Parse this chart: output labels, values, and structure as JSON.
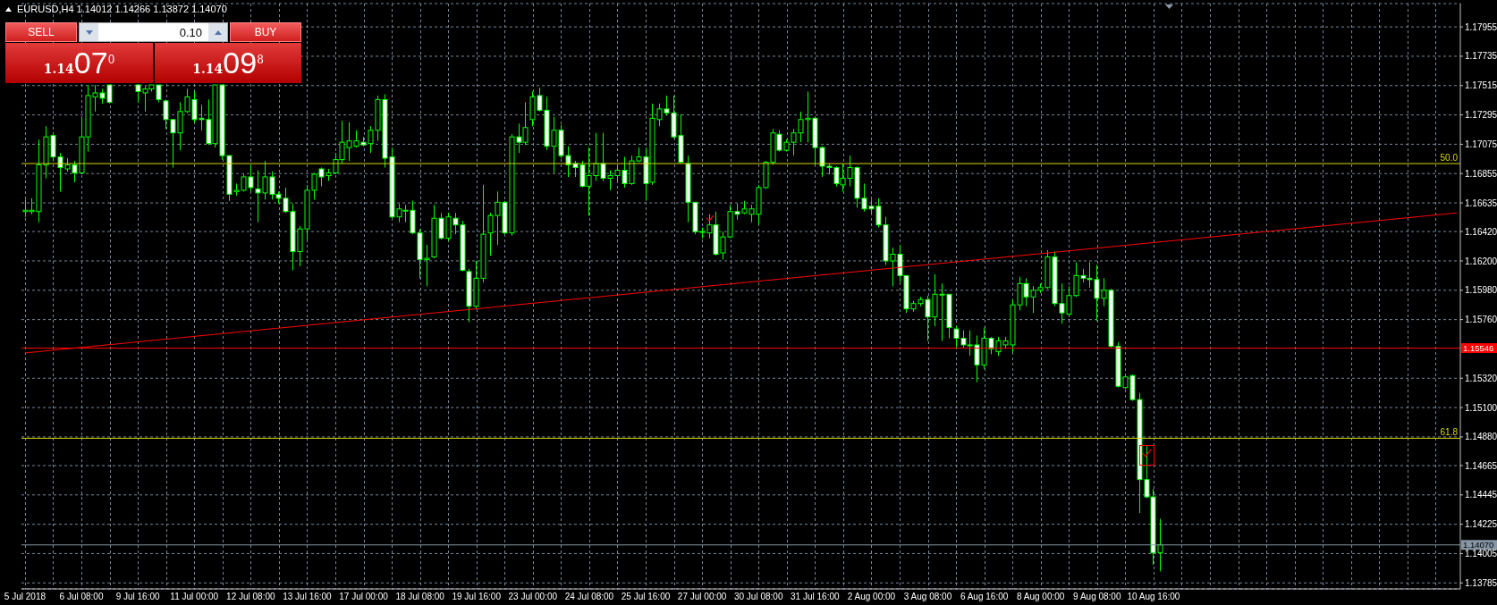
{
  "chart_data": {
    "type": "candlestick",
    "title": "EURUSD,H4 1.14012 1.14266 1.13872 1.14070",
    "annotations": [
      "SELL",
      "0.10",
      "BUY",
      "1.14",
      "07",
      "0",
      "1.14",
      "09",
      "8",
      {
        "text": "50.0",
        "y": 1.1693
      },
      {
        "text": "61.8",
        "y": 1.1487
      }
    ],
    "categories": [
      "5 Jul 2018",
      null,
      null,
      null,
      null,
      null,
      null,
      null,
      "6 Jul 08:00",
      null,
      null,
      null,
      null,
      null,
      null,
      null,
      "9 Jul 16:00",
      null,
      null,
      null,
      null,
      null,
      null,
      null,
      "11 Jul 00:00",
      null,
      null,
      null,
      null,
      null,
      null,
      null,
      "12 Jul 08:00",
      null,
      null,
      null,
      null,
      null,
      null,
      null,
      "13 Jul 16:00",
      null,
      null,
      null,
      null,
      null,
      null,
      null,
      "17 Jul 00:00",
      null,
      null,
      null,
      null,
      null,
      null,
      null,
      "18 Jul 08:00",
      null,
      null,
      null,
      null,
      null,
      null,
      null,
      "19 Jul 16:00",
      null,
      null,
      null,
      null,
      null,
      null,
      null,
      "23 Jul 00:00",
      null,
      null,
      null,
      null,
      null,
      null,
      null,
      "24 Jul 08:00",
      null,
      null,
      null,
      null,
      null,
      null,
      null,
      "25 Jul 16:00",
      null,
      null,
      null,
      null,
      null,
      null,
      null,
      "27 Jul 00:00",
      null,
      null,
      null,
      null,
      null,
      null,
      null,
      "30 Jul 08:00",
      null,
      null,
      null,
      null,
      null,
      null,
      null,
      "31 Jul 16:00",
      null,
      null,
      null,
      null,
      null,
      null,
      null,
      "2 Aug 00:00",
      null,
      null,
      null,
      null,
      null,
      null,
      null,
      "3 Aug 08:00",
      null,
      null,
      null,
      null,
      null,
      null,
      null,
      "6 Aug 16:00",
      null,
      null,
      null,
      null,
      null,
      null,
      null,
      "8 Aug 00:00",
      null,
      null,
      null,
      null,
      null,
      null,
      null,
      "9 Aug 08:00",
      null,
      null,
      null,
      null,
      null,
      null,
      null,
      "10 Aug 16:00",
      null,
      null,
      null,
      null,
      null,
      null,
      null,
      null,
      null,
      null,
      null,
      null,
      null,
      null,
      null,
      null,
      null,
      null,
      null,
      null,
      null,
      null,
      null,
      null,
      null,
      null,
      null,
      null,
      null,
      null,
      null,
      null,
      null,
      null,
      null,
      null,
      null,
      null,
      null,
      null,
      null,
      null,
      null
    ],
    "color": "#00ff00",
    "ohlc": [
      [
        1.1657,
        1.1666,
        1.1653,
        1.1658
      ],
      [
        1.1657,
        1.1667,
        1.1655,
        1.1658
      ],
      [
        1.1657,
        1.1711,
        1.1649,
        1.1692
      ],
      [
        1.1692,
        1.1721,
        1.1682,
        1.1713
      ],
      [
        1.1714,
        1.1716,
        1.1695,
        1.1698
      ],
      [
        1.1698,
        1.1701,
        1.1672,
        1.169
      ],
      [
        1.1689,
        1.1697,
        1.1687,
        1.1692
      ],
      [
        1.1692,
        1.1695,
        1.1679,
        1.1686
      ],
      [
        1.1686,
        1.1727,
        1.1685,
        1.1713
      ],
      [
        1.1713,
        1.1752,
        1.1702,
        1.1744
      ],
      [
        1.1743,
        1.1752,
        1.1732,
        1.1746
      ],
      [
        1.1746,
        1.1749,
        1.1738,
        1.1742
      ],
      [
        1.1752,
        1.1752,
        1.1738,
        1.1739
      ],
      null,
      null,
      null,
      [
        1.1752,
        1.1752,
        1.1739,
        1.1747
      ],
      [
        1.1746,
        1.1751,
        1.1732,
        1.1749
      ],
      [
        1.1749,
        1.1752,
        1.1747,
        1.1752
      ],
      [
        1.1752,
        1.1752,
        1.1739,
        1.1741
      ],
      [
        1.174,
        1.1741,
        1.1719,
        1.1726
      ],
      [
        1.1726,
        1.1726,
        1.169,
        1.1716
      ],
      [
        1.1716,
        1.1739,
        1.1703,
        1.1732
      ],
      [
        1.1732,
        1.1749,
        1.1731,
        1.1743
      ],
      [
        1.1741,
        1.1747,
        1.1724,
        1.1726
      ],
      [
        1.1727,
        1.1737,
        1.1718,
        1.1726
      ],
      [
        1.1726,
        1.1741,
        1.1707,
        1.1708
      ],
      [
        1.1708,
        1.1752,
        1.1705,
        1.1752
      ],
      [
        1.1752,
        1.1752,
        1.1696,
        1.1699
      ],
      [
        1.1699,
        1.1699,
        1.1665,
        1.167
      ],
      [
        1.1672,
        1.1678,
        1.1669,
        1.1673
      ],
      [
        1.1673,
        1.1685,
        1.1672,
        1.1683
      ],
      [
        1.1683,
        1.1692,
        1.1672,
        1.1675
      ],
      [
        1.1674,
        1.1688,
        1.1649,
        1.1671
      ],
      [
        1.1671,
        1.1695,
        1.1666,
        1.1683
      ],
      [
        1.1683,
        1.1687,
        1.1666,
        1.167
      ],
      [
        1.167,
        1.1672,
        1.1663,
        1.1667
      ],
      [
        1.1667,
        1.1675,
        1.1656,
        1.1657
      ],
      [
        1.1657,
        1.1663,
        1.1613,
        1.1627
      ],
      [
        1.1627,
        1.1646,
        1.1616,
        1.1644
      ],
      [
        1.1644,
        1.1677,
        1.1636,
        1.1673
      ],
      [
        1.1673,
        1.1686,
        1.1666,
        1.1685
      ],
      [
        1.1689,
        1.169,
        1.1676,
        1.1683
      ],
      [
        1.1684,
        1.1689,
        1.168,
        1.1686
      ],
      [
        1.1686,
        1.1701,
        1.1685,
        1.1696
      ],
      [
        1.1696,
        1.1725,
        1.1693,
        1.1709
      ],
      [
        1.1705,
        1.1724,
        1.1695,
        1.171
      ],
      [
        1.1706,
        1.1718,
        1.1705,
        1.171
      ],
      [
        1.1709,
        1.1713,
        1.1706,
        1.1707
      ],
      [
        1.1708,
        1.1721,
        1.1701,
        1.1718
      ],
      [
        1.1718,
        1.1744,
        1.171,
        1.1741
      ],
      [
        1.1741,
        1.1745,
        1.169,
        1.1697
      ],
      [
        1.1698,
        1.1705,
        1.1652,
        1.1653
      ],
      [
        1.1653,
        1.1663,
        1.1649,
        1.1659
      ],
      [
        1.1658,
        1.1662,
        1.1649,
        1.1658
      ],
      [
        1.1658,
        1.1665,
        1.164,
        1.1641
      ],
      [
        1.1641,
        1.1644,
        1.1607,
        1.1621
      ],
      [
        1.1621,
        1.1632,
        1.1601,
        1.1622
      ],
      [
        1.1623,
        1.1662,
        1.1622,
        1.1652
      ],
      [
        1.1652,
        1.1656,
        1.1636,
        1.1637
      ],
      [
        1.1637,
        1.1656,
        1.1635,
        1.1653
      ],
      [
        1.1652,
        1.1656,
        1.164,
        1.1647
      ],
      [
        1.1647,
        1.165,
        1.1612,
        1.1613
      ],
      [
        1.1612,
        1.1614,
        1.1574,
        1.1586
      ],
      [
        1.1586,
        1.162,
        1.1584,
        1.1607
      ],
      [
        1.1607,
        1.1677,
        1.1604,
        1.164
      ],
      [
        1.1641,
        1.1656,
        1.1624,
        1.1654
      ],
      [
        1.1654,
        1.1672,
        1.1632,
        1.1664
      ],
      [
        1.1664,
        1.1665,
        1.164,
        1.1641
      ],
      [
        1.1641,
        1.1715,
        1.1639,
        1.1713
      ],
      [
        1.1713,
        1.1723,
        1.1701,
        1.1709
      ],
      [
        1.1709,
        1.1739,
        1.1707,
        1.172
      ],
      [
        1.1726,
        1.1747,
        1.1721,
        1.1743
      ],
      [
        1.1744,
        1.175,
        1.1732,
        1.1733
      ],
      [
        1.1733,
        1.1743,
        1.1703,
        1.1706
      ],
      [
        1.1706,
        1.1728,
        1.1686,
        1.1718
      ],
      [
        1.1718,
        1.1722,
        1.1697,
        1.1699
      ],
      [
        1.1699,
        1.1706,
        1.1683,
        1.1692
      ],
      [
        1.1693,
        1.1695,
        1.1683,
        1.169
      ],
      [
        1.1692,
        1.1695,
        1.1675,
        1.1676
      ],
      [
        1.1676,
        1.1705,
        1.1654,
        1.1684
      ],
      [
        1.1684,
        1.1716,
        1.168,
        1.1693
      ],
      [
        1.1693,
        1.1716,
        1.168,
        1.1682
      ],
      [
        1.1682,
        1.1688,
        1.1673,
        1.1684
      ],
      [
        1.1684,
        1.1692,
        1.168,
        1.1688
      ],
      [
        1.1688,
        1.1698,
        1.1675,
        1.1678
      ],
      [
        1.1678,
        1.1699,
        1.1677,
        1.1695
      ],
      [
        1.1695,
        1.1705,
        1.1694,
        1.1698
      ],
      [
        1.1698,
        1.1705,
        1.1665,
        1.1678
      ],
      [
        1.1679,
        1.1738,
        1.1677,
        1.1727
      ],
      [
        1.1726,
        1.1738,
        1.1721,
        1.1734
      ],
      [
        1.1734,
        1.1744,
        1.1729,
        1.1731
      ],
      [
        1.1731,
        1.1744,
        1.1712,
        1.1713
      ],
      [
        1.1714,
        1.173,
        1.1693,
        1.1694
      ],
      [
        1.1693,
        1.1699,
        1.1649,
        1.1664
      ],
      [
        1.1664,
        1.1664,
        1.164,
        1.1642
      ],
      [
        1.1642,
        1.1645,
        1.1637,
        1.1642
      ],
      [
        1.1641,
        1.1655,
        1.1637,
        1.1647
      ],
      [
        1.1647,
        1.1657,
        1.1624,
        1.1625
      ],
      [
        1.1626,
        1.1642,
        1.1621,
        1.1638
      ],
      [
        1.1638,
        1.1662,
        1.1637,
        1.1657
      ],
      [
        1.1657,
        1.1663,
        1.1651,
        1.1655
      ],
      [
        1.1656,
        1.1665,
        1.1655,
        1.1659
      ],
      [
        1.1655,
        1.1662,
        1.1649,
        1.1659
      ],
      [
        1.1655,
        1.1677,
        1.1647,
        1.1675
      ],
      [
        1.1675,
        1.1695,
        1.1674,
        1.1694
      ],
      [
        1.1694,
        1.1719,
        1.1692,
        1.1716
      ],
      [
        1.1715,
        1.1718,
        1.1702,
        1.1703
      ],
      [
        1.1703,
        1.1711,
        1.1702,
        1.1709
      ],
      [
        1.1709,
        1.1719,
        1.1699,
        1.1716
      ],
      [
        1.1716,
        1.1732,
        1.1709,
        1.1726
      ],
      [
        1.1726,
        1.1747,
        1.1709,
        1.1727
      ],
      [
        1.1727,
        1.1728,
        1.1692,
        1.1705
      ],
      [
        1.1705,
        1.1706,
        1.1683,
        1.1691
      ],
      [
        1.1691,
        1.1693,
        1.1685,
        1.169
      ],
      [
        1.169,
        1.1691,
        1.1676,
        1.1678
      ],
      [
        1.1677,
        1.1693,
        1.1672,
        1.1682
      ],
      [
        1.1682,
        1.1699,
        1.1676,
        1.169
      ],
      [
        1.169,
        1.1691,
        1.166,
        1.1667
      ],
      [
        1.1667,
        1.1678,
        1.1657,
        1.1659
      ],
      [
        1.1661,
        1.1666,
        1.1656,
        1.1659
      ],
      [
        1.1661,
        1.1667,
        1.1645,
        1.1647
      ],
      [
        1.1647,
        1.1653,
        1.1617,
        1.162
      ],
      [
        1.162,
        1.163,
        1.1601,
        1.1625
      ],
      [
        1.1625,
        1.1632,
        1.1604,
        1.1609
      ],
      [
        1.1609,
        1.1609,
        1.1581,
        1.1584
      ],
      [
        1.1584,
        1.159,
        1.1582,
        1.1588
      ],
      [
        1.1588,
        1.1593,
        1.1586,
        1.1591
      ],
      [
        1.1591,
        1.1594,
        1.156,
        1.1578
      ],
      [
        1.1578,
        1.161,
        1.1571,
        1.1595
      ],
      [
        1.1595,
        1.1603,
        1.156,
        1.1595
      ],
      [
        1.1595,
        1.1595,
        1.1562,
        1.157
      ],
      [
        1.1569,
        1.1571,
        1.1555,
        1.1562
      ],
      [
        1.1562,
        1.1568,
        1.1555,
        1.1557
      ],
      [
        1.1557,
        1.1568,
        1.1549,
        1.1557
      ],
      [
        1.1557,
        1.1564,
        1.1529,
        1.1542
      ],
      [
        1.1542,
        1.157,
        1.1539,
        1.1562
      ],
      [
        1.1562,
        1.1563,
        1.155,
        1.1554
      ],
      [
        1.1552,
        1.1563,
        1.1549,
        1.156
      ],
      [
        1.1557,
        1.1563,
        1.1555,
        1.156
      ],
      [
        1.1557,
        1.1591,
        1.1551,
        1.1587
      ],
      [
        1.1587,
        1.1608,
        1.1583,
        1.1603
      ],
      [
        1.1603,
        1.1607,
        1.1586,
        1.1593
      ],
      [
        1.1593,
        1.1601,
        1.1581,
        1.1598
      ],
      [
        1.1598,
        1.1603,
        1.1596,
        1.16
      ],
      [
        1.16,
        1.1628,
        1.1599,
        1.1623
      ],
      [
        1.1623,
        1.1627,
        1.1586,
        1.1588
      ],
      [
        1.1588,
        1.1603,
        1.1573,
        1.1581
      ],
      [
        1.158,
        1.1601,
        1.1579,
        1.1594
      ],
      [
        1.1594,
        1.1619,
        1.1593,
        1.1609
      ],
      [
        1.1609,
        1.1614,
        1.1604,
        1.1607
      ],
      [
        1.1607,
        1.1619,
        1.16,
        1.1606
      ],
      [
        1.1606,
        1.1617,
        1.1575,
        1.1592
      ],
      [
        1.1592,
        1.1607,
        1.1586,
        1.1598
      ],
      [
        1.1598,
        1.1599,
        1.1555,
        1.1556
      ],
      [
        1.1556,
        1.1559,
        1.1525,
        1.1526
      ],
      [
        1.1525,
        1.1534,
        1.1524,
        1.1533
      ],
      [
        1.1534,
        1.1535,
        1.1515,
        1.1516
      ],
      [
        1.1516,
        1.1521,
        1.1431,
        1.1456
      ],
      [
        1.1456,
        1.1482,
        1.1442,
        1.1443
      ],
      [
        1.1443,
        1.1449,
        1.1392,
        1.1401
      ],
      [
        1.14012,
        1.14266,
        1.13872,
        1.1407
      ],
      null,
      null,
      null,
      null,
      null,
      null,
      null,
      null,
      null,
      null,
      null,
      null,
      null,
      null,
      null,
      null,
      null,
      null,
      null,
      null,
      null,
      null,
      null,
      null,
      null,
      null,
      null,
      null,
      null,
      null,
      null,
      null,
      null,
      null,
      null,
      null,
      null,
      null,
      null,
      null,
      null,
      null
    ],
    "series": [
      {
        "type": "line",
        "color": "#ff0000",
        "values": [
          1.1551,
          null,
          null,
          null,
          null,
          null,
          null,
          null,
          null,
          null,
          null,
          null,
          null,
          null,
          null,
          null,
          null,
          null,
          null,
          null,
          null,
          null,
          null,
          null,
          null,
          null,
          null,
          null,
          null,
          null,
          null,
          null,
          null,
          null,
          null,
          null,
          null,
          null,
          null,
          null,
          null,
          null,
          null,
          null,
          null,
          null,
          null,
          null,
          null,
          null,
          null,
          null,
          null,
          null,
          null,
          null,
          null,
          null,
          null,
          null,
          null,
          null,
          null,
          null,
          null,
          null,
          null,
          null,
          null,
          null,
          null,
          null,
          null,
          null,
          null,
          null,
          null,
          null,
          null,
          null,
          null,
          null,
          null,
          null,
          null,
          null,
          null,
          null,
          null,
          null,
          null,
          null,
          null,
          null,
          null,
          null,
          null,
          null,
          null,
          null,
          null,
          null,
          null,
          null,
          null,
          null,
          null,
          null,
          null,
          null,
          null,
          null,
          null,
          null,
          null,
          null,
          null,
          null,
          null,
          null,
          null,
          null,
          null,
          null,
          null,
          null,
          null,
          null,
          null,
          null,
          null,
          null,
          null,
          null,
          null,
          null,
          null,
          null,
          null,
          null,
          null,
          null,
          null,
          null,
          null,
          null,
          null,
          null,
          null,
          null,
          null,
          null,
          null,
          null,
          null,
          null,
          null,
          null,
          null,
          null,
          null,
          null,
          null,
          null,
          null,
          null,
          null,
          null,
          null,
          null,
          null,
          null,
          null,
          null,
          null,
          null,
          null,
          null,
          null,
          null,
          null,
          null,
          null,
          null,
          null,
          null,
          null,
          null,
          null,
          null,
          null,
          null,
          null,
          null,
          null,
          null,
          null,
          null,
          null,
          null,
          null,
          null,
          null,
          1.1656
        ]
      }
    ],
    "ylim": [
      1.1374,
      1.1813
    ],
    "yticks": [
      1.17955,
      1.17735,
      1.17515,
      1.17295,
      1.17075,
      1.16855,
      1.16635,
      {
        "value": 1.1642,
        "label": "1.16420"
      },
      {
        "value": 1.162,
        "label": "1.16200"
      },
      {
        "value": 1.1598,
        "label": "1.15980"
      },
      {
        "value": 1.1576,
        "label": "1.15760"
      },
      {
        "value": 1.1532,
        "label": "1.15320"
      },
      {
        "value": 1.151,
        "label": "1.15100"
      },
      {
        "value": 1.1488,
        "label": "1.14880"
      },
      1.14665,
      1.14445,
      1.14225,
      1.14005,
      1.13785
    ],
    "ref_lines": [
      {
        "axis": "y",
        "value": 1.1693,
        "color": "#d8d800"
      },
      {
        "axis": "y",
        "value": 1.1487,
        "color": "#d8d800"
      },
      {
        "axis": "y",
        "value": 1.15546,
        "label": "1.15546",
        "color": "#ff0000"
      },
      {
        "axis": "y",
        "value": 1.1407,
        "label": "1.14070",
        "color": "#8796a5"
      }
    ],
    "grid": true
  }
}
